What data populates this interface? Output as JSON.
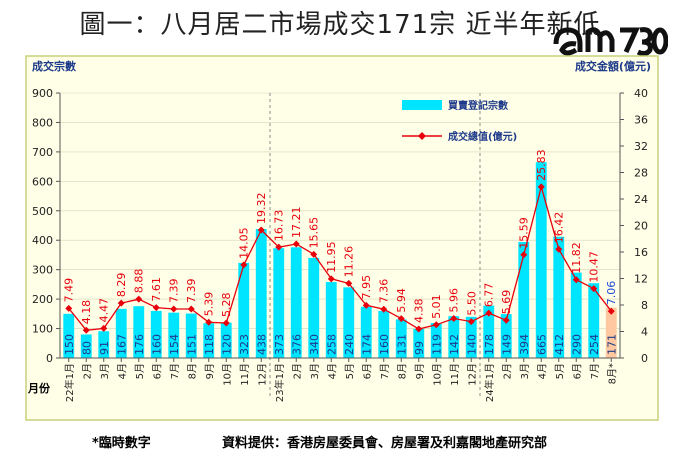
{
  "title": "圖一：八月居二市場成交171宗 近半年新低",
  "logo_text": "am730",
  "footnote": "*臨時數字",
  "source": "資料提供：香港房屋委員會、房屋署及利嘉閣地產研究部",
  "chart_data": {
    "type": "bar+line",
    "left_axis_title": "成交宗數",
    "right_axis_title": "成交金額(億元)",
    "x_axis_title": "月份",
    "left_ylim": [
      0,
      900
    ],
    "left_ticks": [
      "0",
      "100",
      "200",
      "300",
      "400",
      "500",
      "600",
      "700",
      "800",
      "900"
    ],
    "right_ylim": [
      0,
      40
    ],
    "right_ticks": [
      "0",
      "4",
      "8",
      "12",
      "16",
      "20",
      "24",
      "28",
      "32",
      "36",
      "40"
    ],
    "categories": [
      "22年1月",
      "2月",
      "3月",
      "4月",
      "5月",
      "6月",
      "7月",
      "8月",
      "9月",
      "10月",
      "11月",
      "12月",
      "23年1月",
      "2月",
      "3月",
      "4月",
      "5月",
      "6月",
      "7月",
      "8月",
      "9月",
      "10月",
      "11月",
      "12月",
      "24年1月",
      "2月",
      "3月",
      "4月",
      "5月",
      "6月",
      "7月",
      "8月*"
    ],
    "year_separators_after": [
      11,
      23
    ],
    "series": [
      {
        "name": "買賣登記宗數",
        "kind": "bar",
        "axis": "left",
        "color": "#00e5ff",
        "provisional_color": "#ffc8a0",
        "label_color": "#1e3a8a",
        "values": [
          150,
          80,
          91,
          167,
          176,
          160,
          154,
          151,
          118,
          120,
          323,
          438,
          373,
          376,
          340,
          258,
          240,
          174,
          160,
          131,
          99,
          119,
          142,
          140,
          178,
          149,
          394,
          665,
          412,
          290,
          254,
          171
        ],
        "labels": [
          "150",
          "80",
          "91",
          "167",
          "176",
          "160",
          "154",
          "151",
          "118",
          "120",
          "323",
          "438",
          "373",
          "376",
          "340",
          "258",
          "240",
          "174",
          "160",
          "131",
          "99",
          "119",
          "142",
          "140",
          "178",
          "149",
          "394",
          "665",
          "412",
          "290",
          "254",
          "171"
        ]
      },
      {
        "name": "成交總值(億元)",
        "kind": "line",
        "axis": "right",
        "color": "#e8000b",
        "label_color": "#e8000b",
        "provisional_label_color": "#1e4bd8",
        "values": [
          7.49,
          4.18,
          4.47,
          8.29,
          8.88,
          7.61,
          7.39,
          7.39,
          5.39,
          5.28,
          14.05,
          19.32,
          16.73,
          17.21,
          15.65,
          11.95,
          11.26,
          7.95,
          7.36,
          5.94,
          4.38,
          5.01,
          5.96,
          5.5,
          6.77,
          5.69,
          15.59,
          25.83,
          16.42,
          11.82,
          10.47,
          7.06
        ],
        "labels": [
          "7.49",
          "4.18",
          "4.47",
          "8.29",
          "8.88",
          "7.61",
          "7.39",
          "7.39",
          "5.39",
          "5.28",
          "14.05",
          "19.32",
          "16.73",
          "17.21",
          "15.65",
          "11.95",
          "11.26",
          "7.95",
          "7.36",
          "5.94",
          "4.38",
          "5.01",
          "5.96",
          "5.50",
          "6.77",
          "5.69",
          "15.59",
          "25.83",
          "16.42",
          "11.82",
          "10.47",
          "7.06"
        ]
      }
    ],
    "legend_position": "top-center"
  }
}
